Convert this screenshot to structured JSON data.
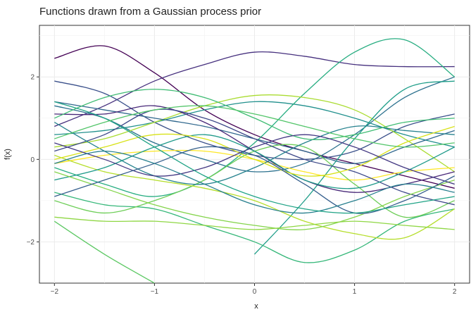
{
  "chart_data": {
    "type": "line",
    "title": "Functions drawn from a Gaussian process prior",
    "xlabel": "x",
    "ylabel": "f(x)",
    "xlim": [
      -2.15,
      2.15
    ],
    "ylim": [
      -3.0,
      3.25
    ],
    "x_ticks": [
      -2,
      -1,
      0,
      1,
      2
    ],
    "y_ticks": [
      -2,
      0,
      2
    ],
    "x_tick_labels": [
      "−2",
      "−1",
      "0",
      "1",
      "2"
    ],
    "y_tick_labels": [
      "−2",
      "0",
      "2"
    ],
    "grid": true,
    "legend": "none",
    "colormap": "viridis",
    "series_sampled_at": [
      -2,
      -1.5,
      -1,
      -0.5,
      0,
      0.5,
      1,
      1.5,
      2
    ],
    "series_note": "approximate traced curves; hover ignored",
    "series": [
      {
        "color": "#440154",
        "values": [
          2.45,
          2.75,
          2.1,
          1.2,
          0.6,
          0.2,
          -0.1,
          -0.4,
          -0.7
        ]
      },
      {
        "color": "#46307e",
        "values": [
          0.8,
          1.3,
          1.9,
          2.3,
          2.6,
          2.5,
          2.3,
          2.25,
          2.25
        ]
      },
      {
        "color": "#3b518b",
        "values": [
          1.9,
          1.6,
          0.9,
          0.4,
          0.1,
          0.0,
          0.2,
          0.8,
          1.1
        ]
      },
      {
        "color": "#2c718e",
        "values": [
          1.3,
          1.0,
          0.4,
          0.0,
          -0.3,
          -0.1,
          0.6,
          1.5,
          2.0
        ]
      },
      {
        "color": "#21908d",
        "values": [
          0.6,
          0.7,
          0.9,
          1.2,
          1.4,
          1.3,
          1.0,
          0.6,
          0.3
        ]
      },
      {
        "color": "#27ad81",
        "values": [
          -0.2,
          -0.6,
          -0.9,
          -0.5,
          0.4,
          1.6,
          2.6,
          2.9,
          2.0
        ]
      },
      {
        "color": "#5cc863",
        "values": [
          -1.5,
          -2.3,
          -3.0,
          null,
          null,
          null,
          null,
          null,
          null
        ]
      },
      {
        "color": "#aadc32",
        "values": [
          0.3,
          0.5,
          0.9,
          1.3,
          1.55,
          1.5,
          1.2,
          0.5,
          -0.3
        ]
      },
      {
        "color": "#fde725",
        "values": [
          -0.1,
          0.1,
          0.2,
          0.2,
          0.0,
          -0.3,
          -0.5,
          -0.3,
          -0.2
        ]
      },
      {
        "color": "#31688e",
        "values": [
          1.4,
          1.2,
          1.0,
          0.8,
          0.5,
          0.2,
          -0.1,
          0.3,
          0.7
        ]
      },
      {
        "color": "#1f9e89",
        "values": [
          null,
          null,
          null,
          null,
          -2.3,
          -1.0,
          0.5,
          1.7,
          1.9
        ]
      },
      {
        "color": "#35b779",
        "values": [
          -0.8,
          -1.1,
          -1.2,
          -1.6,
          -2.0,
          -2.5,
          -2.2,
          -1.5,
          -1.2
        ]
      },
      {
        "color": "#6ece58",
        "values": [
          -1.0,
          -1.3,
          -1.0,
          -0.5,
          0.2,
          0.3,
          -0.6,
          -1.4,
          -1.0
        ]
      },
      {
        "color": "#b5de2b",
        "values": [
          0.1,
          -0.3,
          -0.5,
          -0.7,
          -1.0,
          -1.5,
          -1.8,
          -1.9,
          -1.2
        ]
      },
      {
        "color": "#482878",
        "values": [
          1.1,
          1.1,
          1.3,
          0.9,
          0.2,
          -0.5,
          -0.8,
          -0.6,
          -0.3
        ]
      },
      {
        "color": "#3e4989",
        "values": [
          0.2,
          0.6,
          1.2,
          1.0,
          0.5,
          0.0,
          -0.3,
          -0.8,
          -1.1
        ]
      },
      {
        "color": "#26828e",
        "values": [
          0.9,
          0.2,
          -0.4,
          -0.6,
          -0.2,
          0.4,
          0.8,
          0.7,
          0.6
        ]
      },
      {
        "color": "#1f9a8a",
        "values": [
          -0.5,
          -0.2,
          0.3,
          0.6,
          0.2,
          -0.5,
          -0.7,
          -0.3,
          0.3
        ]
      },
      {
        "color": "#3fbc73",
        "values": [
          1.0,
          1.5,
          1.7,
          1.5,
          1.0,
          0.5,
          0.6,
          0.9,
          1.0
        ]
      },
      {
        "color": "#84d44b",
        "values": [
          -0.3,
          -0.7,
          -1.1,
          -1.4,
          -1.6,
          -1.7,
          -1.4,
          -0.9,
          -0.5
        ]
      },
      {
        "color": "#d8e219",
        "values": [
          0.0,
          0.3,
          0.6,
          0.5,
          0.0,
          -0.4,
          -0.2,
          0.4,
          0.8
        ]
      },
      {
        "color": "#443983",
        "values": [
          0.4,
          0.0,
          -0.4,
          -0.2,
          0.3,
          0.6,
          0.3,
          -0.2,
          -0.6
        ]
      },
      {
        "color": "#355f8d",
        "values": [
          -0.9,
          -0.5,
          -0.1,
          0.3,
          0.1,
          -0.6,
          -1.3,
          -1.0,
          -0.4
        ]
      },
      {
        "color": "#277f8e",
        "values": [
          -0.1,
          0.2,
          -0.1,
          -0.6,
          -1.1,
          -1.3,
          -1.0,
          -0.6,
          -0.8
        ]
      },
      {
        "color": "#20a386",
        "values": [
          1.4,
          1.0,
          0.3,
          -0.4,
          -0.9,
          -1.2,
          -1.3,
          -1.1,
          -0.9
        ]
      },
      {
        "color": "#52c569",
        "values": [
          0.5,
          0.9,
          1.2,
          1.3,
          1.1,
          0.8,
          0.5,
          0.3,
          0.4
        ]
      },
      {
        "color": "#8fd744",
        "values": [
          -1.4,
          -1.5,
          -1.5,
          -1.6,
          -1.7,
          -1.6,
          -1.5,
          -1.6,
          -1.7
        ]
      }
    ]
  }
}
